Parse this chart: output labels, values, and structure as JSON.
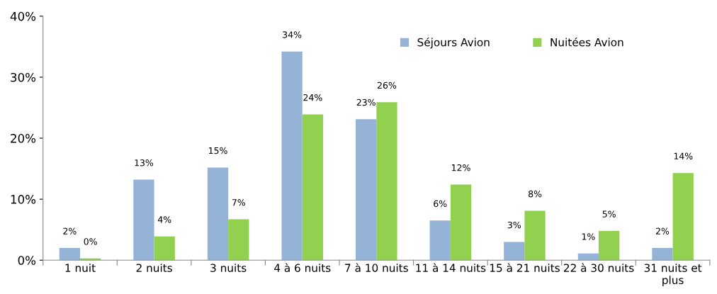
{
  "chart_data": {
    "type": "bar",
    "categories": [
      "1 nuit",
      "2 nuits",
      "3 nuits",
      "4 à 6 nuits",
      "7 à 10 nuits",
      "11 à 14 nuits",
      "15 à 21 nuits",
      "22 à 30 nuits",
      "31 nuits et\nplus"
    ],
    "series": [
      {
        "name": "Séjours Avion",
        "color": "#95b3d7",
        "values": [
          2.0,
          13.2,
          15.2,
          34.2,
          23.1,
          6.5,
          3.0,
          1.1,
          2.0
        ],
        "value_labels": [
          "2%",
          "13%",
          "15%",
          "34%",
          "23%",
          "6%",
          "3%",
          "1%",
          "2%"
        ]
      },
      {
        "name": "Nuitées Avion",
        "color": "#92d050",
        "values": [
          0.3,
          3.9,
          6.7,
          23.9,
          25.9,
          12.4,
          8.1,
          4.8,
          14.3
        ],
        "value_labels": [
          "0%",
          "4%",
          "7%",
          "24%",
          "26%",
          "12%",
          "8%",
          "5%",
          "14%"
        ]
      }
    ],
    "ylim": [
      0,
      40
    ],
    "yticks": [
      {
        "value": 0,
        "label": "0%"
      },
      {
        "value": 10,
        "label": "10%"
      },
      {
        "value": 20,
        "label": "20%"
      },
      {
        "value": 30,
        "label": "30%"
      },
      {
        "value": 40,
        "label": "40%"
      }
    ],
    "grid": false,
    "legend": "top right"
  }
}
